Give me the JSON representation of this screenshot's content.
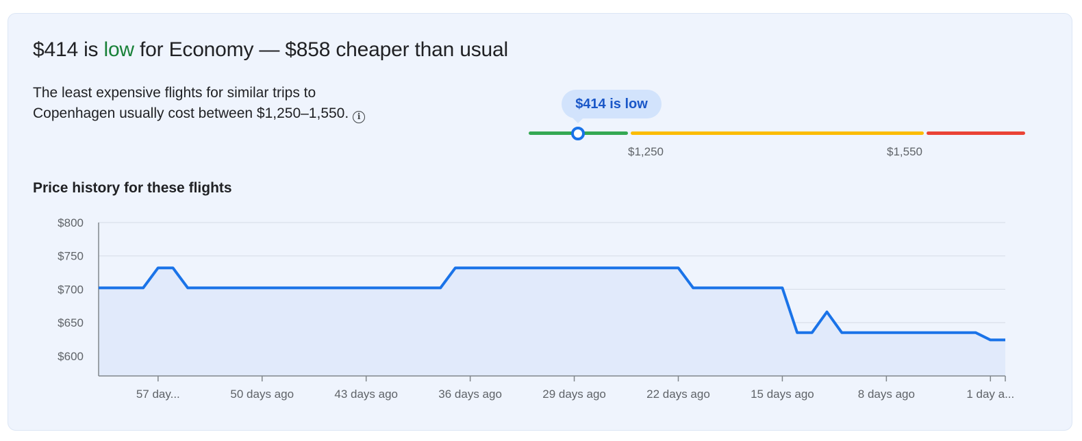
{
  "insight": {
    "price": "$414 is ",
    "level": "low",
    "rest": " for Economy — $858 cheaper than usual",
    "description_line1": "The least expensive flights for similar trips to",
    "description_line2": "Copenhagen usually cost between $1,250–1,550.",
    "info_icon": "info-icon"
  },
  "range": {
    "bubble": "$414 is low",
    "low_bound": "$1,250",
    "high_bound": "$1,550",
    "current_price": 414,
    "colors": {
      "low": "#34a853",
      "typical": "#fbbc04",
      "high": "#ea4335"
    }
  },
  "history": {
    "title": "Price history for these flights"
  },
  "chart_data": {
    "type": "area",
    "title": "",
    "xlabel": "",
    "ylabel": "",
    "ylim": [
      570,
      800
    ],
    "yticks": [
      800,
      750,
      700,
      650,
      600
    ],
    "ytick_labels": [
      "$800",
      "$750",
      "$700",
      "$650",
      "$600"
    ],
    "xtick_labels": [
      "57 day...",
      "50 days ago",
      "43 days ago",
      "36 days ago",
      "29 days ago",
      "22 days ago",
      "15 days ago",
      "8 days ago",
      "1 day a..."
    ],
    "xtick_days_ago": [
      57,
      50,
      43,
      36,
      29,
      22,
      15,
      8,
      1
    ],
    "grid": true,
    "line_color": "#1a73e8",
    "fill_color": "#e1eafb",
    "series": [
      {
        "days_ago": [
          61,
          58,
          57,
          56,
          55,
          38,
          37,
          36,
          22,
          21,
          15,
          14,
          13,
          12,
          11,
          2,
          1,
          0
        ],
        "values": [
          702,
          702,
          732,
          732,
          702,
          702,
          732,
          732,
          732,
          702,
          702,
          635,
          635,
          666,
          635,
          635,
          624,
          624
        ]
      }
    ]
  }
}
